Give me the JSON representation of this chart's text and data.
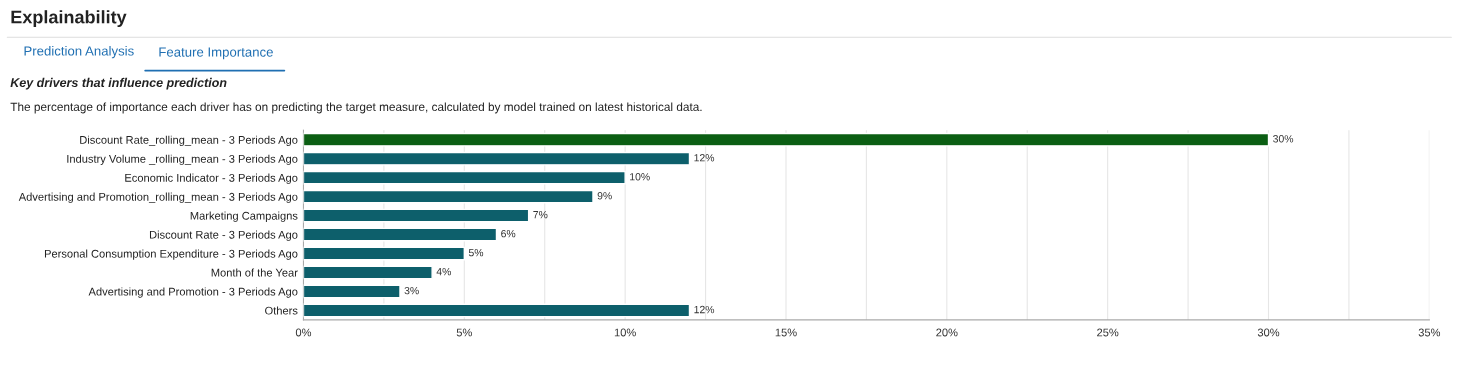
{
  "chart_data": {
    "type": "bar",
    "orientation": "horizontal",
    "title": "Explainability",
    "subtitle": "Key drivers that influence prediction",
    "annotations": [
      "Prediction Analysis",
      "Feature Importance",
      "The percentage of importance each driver has on predicting the target measure, calculated by model trained on latest historical data."
    ],
    "categories": [
      "Discount Rate_rolling_mean - 3 Periods Ago",
      "Industry Volume _rolling_mean - 3 Periods Ago",
      "Economic Indicator - 3 Periods Ago",
      "Advertising and Promotion_rolling_mean - 3 Periods Ago",
      "Marketing Campaigns",
      "Discount Rate - 3 Periods Ago",
      "Personal Consumption Expenditure - 3 Periods Ago",
      "Month of the Year",
      "Advertising and Promotion - 3 Periods Ago",
      "Others"
    ],
    "values": [
      30,
      12,
      10,
      9,
      7,
      6,
      5,
      4,
      3,
      12
    ],
    "value_labels": [
      "30%",
      "12%",
      "10%",
      "9%",
      "7%",
      "6%",
      "5%",
      "4%",
      "3%",
      "12%"
    ],
    "colors": [
      "#0b5e13",
      "#0d5f6b",
      "#0d5f6b",
      "#0d5f6b",
      "#0d5f6b",
      "#0d5f6b",
      "#0d5f6b",
      "#0d5f6b",
      "#0d5f6b",
      "#0d5f6b"
    ],
    "xlim": [
      0,
      35
    ],
    "xticks": [
      {
        "value": 0,
        "label": "0%"
      },
      {
        "value": 2.5,
        "label": null
      },
      {
        "value": 5,
        "label": "5%"
      },
      {
        "value": 7.5,
        "label": null
      },
      {
        "value": 10,
        "label": "10%"
      },
      {
        "value": 12.5,
        "label": null
      },
      {
        "value": 15,
        "label": "15%"
      },
      {
        "value": 17.5,
        "label": null
      },
      {
        "value": 20,
        "label": "20%"
      },
      {
        "value": 22.5,
        "label": null
      },
      {
        "value": 25,
        "label": "25%"
      },
      {
        "value": 27.5,
        "label": null
      },
      {
        "value": 30,
        "label": "30%"
      },
      {
        "value": 32.5,
        "label": null
      },
      {
        "value": 35,
        "label": "35%"
      }
    ],
    "grid": "x",
    "legend": false
  }
}
